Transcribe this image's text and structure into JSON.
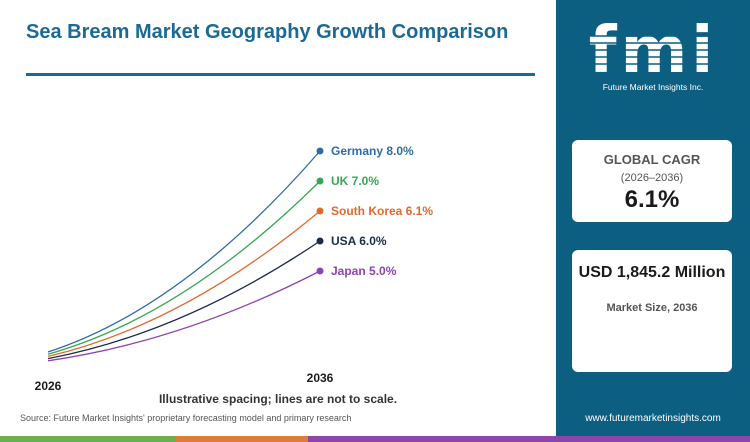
{
  "title": "Sea Bream Market Geography Growth Comparison",
  "note": "Illustrative spacing; lines are not to scale.",
  "source": "Source: Future Market Insights' proprietary forecasting model and primary research",
  "brand": {
    "logo_text": "fmi",
    "logo_subtitle": "Future Market Insights Inc.",
    "website": "www.futuremarketinsights.com",
    "panel_color": "#0d5f82"
  },
  "cagr_card": {
    "label": "GLOBAL CAGR",
    "period": "(2026–2036)",
    "value": "6.1%"
  },
  "size_card": {
    "value": "USD 1,845.2 Million",
    "label": "Market Size, 2036"
  },
  "bottom_bar_colors": [
    "#6ab04c",
    "#e07b39",
    "#8e44ad"
  ],
  "chart_data": {
    "type": "line",
    "x": [
      "2026",
      "2036"
    ],
    "series": [
      {
        "name": "Germany",
        "growth": "8.0%",
        "color": "#2e6da4",
        "end": 8.0
      },
      {
        "name": "UK",
        "growth": "7.0%",
        "color": "#3aa655",
        "end": 7.0
      },
      {
        "name": "South Korea",
        "growth": "6.1%",
        "color": "#e06a2c",
        "end": 6.1
      },
      {
        "name": "USA",
        "growth": "6.0%",
        "color": "#1c2b4a",
        "end": 6.0
      },
      {
        "name": "Japan",
        "growth": "5.0%",
        "color": "#8e44ad",
        "end": 5.0
      }
    ]
  }
}
